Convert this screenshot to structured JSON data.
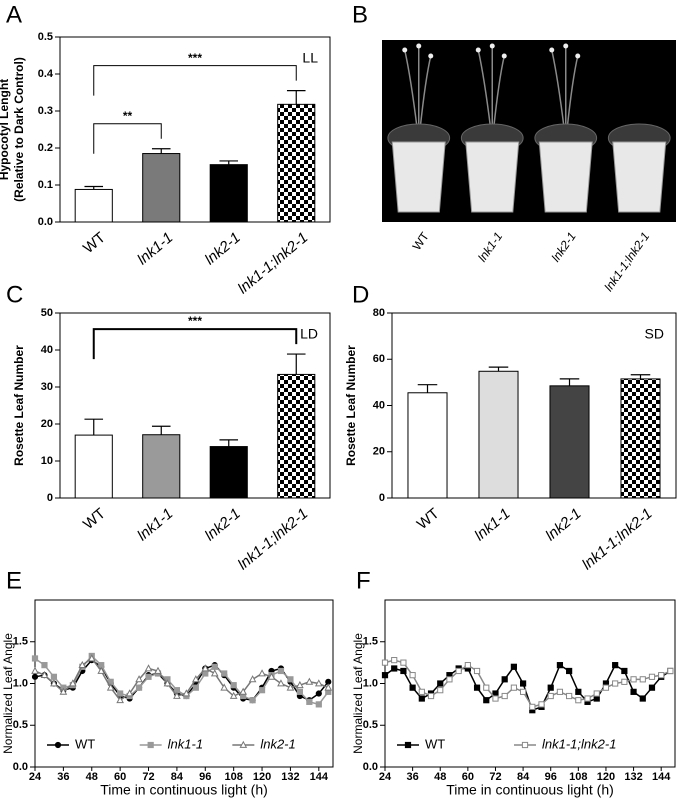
{
  "chart_data": [
    {
      "type": "bar",
      "panel": "A",
      "ylabel": [
        "Hypocotyl Lenght",
        "(Relative to Dark Control)"
      ],
      "condition": "LL",
      "categories": [
        "WT",
        "lnk1-1",
        "lnk2-1",
        "lnk1-1;lnk2-1"
      ],
      "values": [
        0.088,
        0.185,
        0.155,
        0.318
      ],
      "errors": [
        0.008,
        0.013,
        0.01,
        0.037
      ],
      "colors": [
        "#ffffff",
        "#7a7a7a",
        "#000000",
        "checker"
      ],
      "ylim": [
        0,
        0.5
      ],
      "yticks": [
        {
          "value": 0,
          "label": "0.0"
        },
        0.1,
        0.2,
        0.3,
        0.4,
        0.5
      ],
      "significance": [
        {
          "label": "**",
          "between": [
            "WT",
            "lnk1-1"
          ]
        },
        {
          "label": "***",
          "between": [
            "WT",
            "lnk1-1;lnk2-1"
          ]
        }
      ]
    },
    {
      "type": "image",
      "panel": "B",
      "categories": [
        "WT",
        "lnk1-1",
        "lnk2-1",
        "lnk1-1;lnk2-1"
      ]
    },
    {
      "type": "bar",
      "panel": "C",
      "ylabel": [
        "Rosette Leaf Number"
      ],
      "condition": "LD",
      "categories": [
        "WT",
        "lnk1-1",
        "lnk2-1",
        "lnk1-1;lnk2-1"
      ],
      "values": [
        17.0,
        17.1,
        13.9,
        33.4
      ],
      "errors": [
        4.3,
        2.3,
        1.8,
        5.5
      ],
      "colors": [
        "#ffffff",
        "#9a9a9a",
        "#000000",
        "checker"
      ],
      "ylim": [
        0,
        50
      ],
      "yticks": [
        0,
        10,
        20,
        30,
        40,
        50
      ],
      "significance": [
        {
          "label": "***",
          "between": [
            "WT",
            "lnk1-1;lnk2-1"
          ]
        }
      ]
    },
    {
      "type": "bar",
      "panel": "D",
      "ylabel": [
        "Rosette Leaf Number"
      ],
      "condition": "SD",
      "categories": [
        "WT",
        "lnk1-1",
        "lnk2-1",
        "lnk1-1;lnk2-1"
      ],
      "values": [
        45.5,
        54.8,
        48.5,
        51.5
      ],
      "errors": [
        3.5,
        1.8,
        3.0,
        1.8
      ],
      "colors": [
        "#ffffff",
        "#dddddd",
        "#444444",
        "checker"
      ],
      "ylim": [
        0,
        80
      ],
      "yticks": [
        0,
        20,
        40,
        60,
        80
      ],
      "significance": []
    },
    {
      "type": "line",
      "panel": "E",
      "ylabel": "Normalized Leaf Angle",
      "xlabel": "Time in continuous light (h)",
      "x": [
        24,
        28,
        32,
        36,
        40,
        44,
        48,
        52,
        56,
        60,
        64,
        68,
        72,
        76,
        80,
        84,
        88,
        92,
        96,
        100,
        104,
        108,
        112,
        116,
        120,
        124,
        128,
        132,
        136,
        140,
        144,
        148
      ],
      "series": [
        {
          "name": "WT",
          "color": "#000000",
          "marker": "circle",
          "values": [
            1.08,
            1.1,
            1.0,
            0.92,
            0.95,
            1.15,
            1.28,
            1.2,
            1.0,
            0.85,
            0.82,
            0.95,
            1.1,
            1.12,
            1.0,
            0.88,
            0.85,
            1.0,
            1.18,
            1.22,
            1.1,
            0.95,
            0.82,
            0.8,
            0.95,
            1.15,
            1.18,
            1.02,
            0.85,
            0.8,
            0.88,
            1.02
          ]
        },
        {
          "name": "lnk1-1",
          "color": "#999999",
          "marker": "square",
          "values": [
            1.3,
            1.22,
            1.08,
            0.95,
            0.98,
            1.2,
            1.33,
            1.22,
            1.02,
            0.88,
            0.85,
            0.95,
            1.08,
            1.12,
            1.05,
            0.92,
            0.85,
            0.95,
            1.12,
            1.2,
            1.12,
            0.98,
            0.85,
            0.8,
            0.92,
            1.1,
            1.15,
            1.05,
            0.9,
            0.78,
            0.75,
            0.9
          ]
        },
        {
          "name": "lnk2-1",
          "color": "#777777",
          "marker": "open-triangle",
          "values": [
            1.15,
            1.1,
            1.0,
            0.9,
            1.0,
            1.22,
            1.3,
            1.15,
            0.95,
            0.8,
            0.88,
            1.05,
            1.18,
            1.15,
            1.0,
            0.85,
            0.88,
            1.05,
            1.18,
            1.12,
            0.95,
            0.85,
            0.9,
            1.05,
            1.12,
            1.08,
            1.0,
            0.95,
            0.98,
            1.02,
            1.0,
            0.95
          ]
        }
      ],
      "xlim": [
        24,
        150
      ],
      "ylim": [
        0,
        2
      ],
      "xticks": [
        24,
        36,
        48,
        60,
        72,
        84,
        96,
        108,
        120,
        132,
        144
      ],
      "yticks": [
        {
          "value": 0,
          "label": "0.0"
        },
        0.5,
        {
          "value": 1,
          "label": "1.0"
        },
        1.5
      ]
    },
    {
      "type": "line",
      "panel": "F",
      "ylabel": "Normalized Leaf Angle",
      "xlabel": "Time in continuous light (h)",
      "x": [
        24,
        28,
        32,
        36,
        40,
        44,
        48,
        52,
        56,
        60,
        64,
        68,
        72,
        76,
        80,
        84,
        88,
        92,
        96,
        100,
        104,
        108,
        112,
        116,
        120,
        124,
        128,
        132,
        136,
        140,
        144,
        148
      ],
      "series": [
        {
          "name": "WT",
          "color": "#000000",
          "marker": "square",
          "values": [
            1.1,
            1.18,
            1.15,
            0.95,
            0.82,
            0.88,
            1.0,
            1.1,
            1.18,
            1.18,
            0.95,
            0.8,
            0.88,
            1.05,
            1.2,
            1.0,
            0.68,
            0.72,
            0.95,
            1.22,
            1.15,
            0.9,
            0.78,
            0.82,
            1.0,
            1.22,
            1.15,
            0.9,
            0.82,
            0.95,
            1.08,
            1.15
          ]
        },
        {
          "name": "lnk1-1;lnk2-1",
          "color": "#888888",
          "marker": "open-square",
          "values": [
            1.25,
            1.28,
            1.25,
            1.1,
            0.9,
            0.85,
            0.92,
            1.05,
            1.15,
            1.22,
            1.15,
            0.95,
            0.82,
            0.85,
            0.95,
            0.9,
            0.72,
            0.75,
            0.85,
            0.9,
            0.85,
            0.8,
            0.82,
            0.88,
            0.95,
            1.0,
            1.02,
            1.05,
            1.05,
            1.08,
            1.1,
            1.15
          ]
        }
      ],
      "xlim": [
        24,
        150
      ],
      "ylim": [
        0,
        2
      ],
      "xticks": [
        24,
        36,
        48,
        60,
        72,
        84,
        96,
        108,
        120,
        132,
        144
      ],
      "yticks": [
        {
          "value": 0,
          "label": "0.0"
        },
        0.5,
        {
          "value": 1,
          "label": "1.0"
        },
        1.5
      ]
    }
  ]
}
